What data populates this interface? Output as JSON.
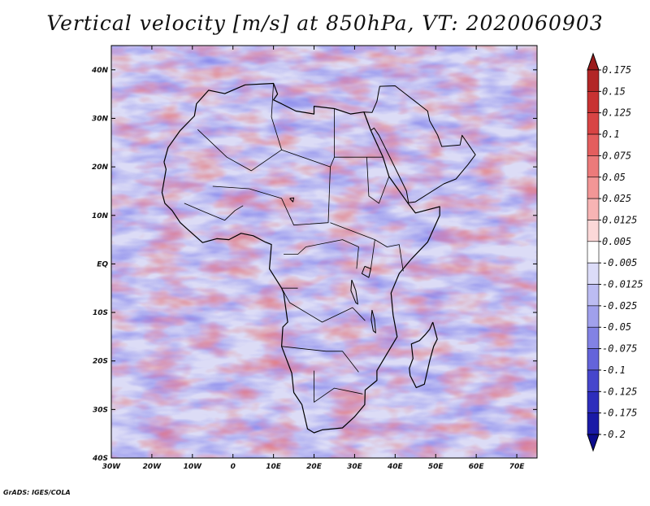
{
  "header": {
    "title": "Vertical velocity [m/s] at 850hPa, VT: 2020060903"
  },
  "map": {
    "lon_range": [
      -30,
      75
    ],
    "lat_range": [
      -40,
      45
    ],
    "x_ticks": [
      {
        "value": -30,
        "label": "30W"
      },
      {
        "value": -20,
        "label": "20W"
      },
      {
        "value": -10,
        "label": "10W"
      },
      {
        "value": 0,
        "label": "0"
      },
      {
        "value": 10,
        "label": "10E"
      },
      {
        "value": 20,
        "label": "20E"
      },
      {
        "value": 30,
        "label": "30E"
      },
      {
        "value": 40,
        "label": "40E"
      },
      {
        "value": 50,
        "label": "50E"
      },
      {
        "value": 60,
        "label": "60E"
      },
      {
        "value": 70,
        "label": "70E"
      }
    ],
    "y_ticks": [
      {
        "value": 40,
        "label": "40N"
      },
      {
        "value": 30,
        "label": "30N"
      },
      {
        "value": 20,
        "label": "20N"
      },
      {
        "value": 10,
        "label": "10N"
      },
      {
        "value": 0,
        "label": "EQ"
      },
      {
        "value": -10,
        "label": "10S"
      },
      {
        "value": -20,
        "label": "20S"
      },
      {
        "value": -30,
        "label": "30S"
      },
      {
        "value": -40,
        "label": "40S"
      }
    ],
    "coastline": [
      [
        -17,
        21
      ],
      [
        -16,
        24
      ],
      [
        -13,
        27.5
      ],
      [
        -9.5,
        30.5
      ],
      [
        -9,
        33
      ],
      [
        -6,
        35.8
      ],
      [
        -2,
        35.1
      ],
      [
        3,
        36.9
      ],
      [
        10,
        37.2
      ],
      [
        11,
        35
      ],
      [
        10,
        33.8
      ],
      [
        12,
        33
      ],
      [
        15.5,
        31.5
      ],
      [
        20,
        30.9
      ],
      [
        20,
        32.5
      ],
      [
        25,
        32
      ],
      [
        29,
        30.9
      ],
      [
        32.3,
        31.3
      ],
      [
        34,
        27.5
      ],
      [
        37,
        22
      ],
      [
        38.5,
        18
      ],
      [
        43,
        12.7
      ],
      [
        45,
        10.5
      ],
      [
        51,
        11.8
      ],
      [
        51,
        10
      ],
      [
        48,
        4.5
      ],
      [
        44,
        1
      ],
      [
        41,
        -2
      ],
      [
        39,
        -6
      ],
      [
        39.5,
        -10.5
      ],
      [
        40.5,
        -15
      ],
      [
        35.5,
        -22
      ],
      [
        35.5,
        -24
      ],
      [
        32.6,
        -26
      ],
      [
        32.5,
        -29
      ],
      [
        30,
        -31.5
      ],
      [
        27,
        -33.8
      ],
      [
        22,
        -34.2
      ],
      [
        20,
        -34.8
      ],
      [
        18.4,
        -34
      ],
      [
        17,
        -29
      ],
      [
        15,
        -26.5
      ],
      [
        14.5,
        -22.5
      ],
      [
        12,
        -17
      ],
      [
        12.3,
        -13
      ],
      [
        13.5,
        -12
      ],
      [
        12.5,
        -6
      ],
      [
        12,
        -5
      ],
      [
        9,
        -1
      ],
      [
        9.5,
        4
      ],
      [
        8,
        4.5
      ],
      [
        5,
        5.8
      ],
      [
        2,
        6.3
      ],
      [
        -1,
        5
      ],
      [
        -4,
        5.2
      ],
      [
        -7.5,
        4.4
      ],
      [
        -11,
        7
      ],
      [
        -13,
        8.5
      ],
      [
        -15,
        11
      ],
      [
        -16.8,
        12.5
      ],
      [
        -17.5,
        14.7
      ],
      [
        -16.5,
        19.5
      ],
      [
        -17,
        21
      ]
    ],
    "madagascar": [
      [
        49.3,
        -12
      ],
      [
        50.4,
        -15.5
      ],
      [
        49.5,
        -17
      ],
      [
        48.5,
        -20
      ],
      [
        47.2,
        -24.8
      ],
      [
        45.2,
        -25.5
      ],
      [
        43.7,
        -23
      ],
      [
        43.5,
        -21.5
      ],
      [
        44.4,
        -19.5
      ],
      [
        44,
        -16.5
      ],
      [
        46,
        -15.8
      ],
      [
        47.5,
        -14.5
      ],
      [
        48.5,
        -13.5
      ],
      [
        49.3,
        -12
      ]
    ],
    "sinai_arabia": [
      [
        32.3,
        31.3
      ],
      [
        34.3,
        31.2
      ],
      [
        35.5,
        33.5
      ],
      [
        36,
        35.8
      ],
      [
        36.2,
        36.6
      ],
      [
        40,
        36.7
      ],
      [
        48,
        31.5
      ],
      [
        48.5,
        29.5
      ],
      [
        50.5,
        26.5
      ],
      [
        51.5,
        24.2
      ],
      [
        56,
        24.5
      ],
      [
        56.5,
        26.5
      ],
      [
        59.8,
        22.5
      ],
      [
        58,
        20.5
      ],
      [
        55,
        17.5
      ],
      [
        52,
        16.5
      ],
      [
        45,
        12.8
      ],
      [
        43.3,
        12.6
      ],
      [
        42.8,
        15
      ],
      [
        39,
        21.5
      ],
      [
        36,
        26.5
      ],
      [
        34.8,
        28
      ],
      [
        34,
        27.5
      ],
      [
        32.3,
        31.3
      ]
    ],
    "borders": [
      [
        [
          -8.7,
          27.7
        ],
        [
          -1.5,
          22
        ],
        [
          4.5,
          19.2
        ],
        [
          12,
          23.5
        ]
      ],
      [
        [
          -5,
          16
        ],
        [
          4,
          15.5
        ],
        [
          12,
          13.5
        ],
        [
          15,
          8
        ],
        [
          23.5,
          8.5
        ],
        [
          24,
          20
        ]
      ],
      [
        [
          10,
          37.2
        ],
        [
          9.5,
          30.3
        ],
        [
          12,
          23.5
        ],
        [
          24,
          20
        ],
        [
          25,
          22
        ],
        [
          25,
          32
        ]
      ],
      [
        [
          25,
          22
        ],
        [
          37,
          22
        ]
      ],
      [
        [
          24,
          8.5
        ],
        [
          35,
          5
        ],
        [
          34,
          -1
        ]
      ],
      [
        [
          16,
          -5
        ],
        [
          12,
          -5
        ],
        [
          14,
          -8
        ],
        [
          22,
          -12
        ],
        [
          29.5,
          -9
        ],
        [
          32.6,
          -11.7
        ]
      ],
      [
        [
          12,
          -17
        ],
        [
          23,
          -18
        ],
        [
          27,
          -18
        ],
        [
          31,
          -22.3
        ]
      ],
      [
        [
          20,
          -22
        ],
        [
          20,
          -28.5
        ],
        [
          25,
          -25.6
        ],
        [
          32,
          -26.8
        ]
      ],
      [
        [
          35,
          5
        ],
        [
          38,
          3.5
        ],
        [
          41,
          4
        ],
        [
          42,
          -1.5
        ]
      ],
      [
        [
          12.5,
          2
        ],
        [
          16,
          2
        ],
        [
          18,
          3.5
        ],
        [
          27,
          5
        ],
        [
          31,
          3.5
        ],
        [
          30.5,
          -1
        ]
      ],
      [
        [
          -12,
          12.5
        ],
        [
          -5,
          10
        ],
        [
          -2,
          9
        ],
        [
          0.5,
          11
        ],
        [
          2.5,
          12
        ]
      ],
      [
        [
          33,
          22
        ],
        [
          33.5,
          14
        ],
        [
          36,
          12.5
        ],
        [
          38.5,
          18
        ]
      ]
    ],
    "lakes": [
      [
        [
          32.5,
          -0.5
        ],
        [
          34,
          -1
        ],
        [
          33.5,
          -2.8
        ],
        [
          31.8,
          -2
        ],
        [
          32.5,
          -0.5
        ]
      ],
      [
        [
          29.3,
          -3.3
        ],
        [
          30.3,
          -5.5
        ],
        [
          30.8,
          -8.3
        ],
        [
          30.3,
          -8
        ],
        [
          29.1,
          -5.5
        ],
        [
          29.3,
          -3.3
        ]
      ],
      [
        [
          34.3,
          -9.5
        ],
        [
          34.9,
          -11.5
        ],
        [
          35.2,
          -14.2
        ],
        [
          34.6,
          -13.8
        ],
        [
          34.1,
          -11.5
        ],
        [
          34.3,
          -9.5
        ]
      ],
      [
        [
          14,
          13.5
        ],
        [
          15,
          13.6
        ],
        [
          14.8,
          12.8
        ],
        [
          14,
          13.5
        ]
      ]
    ]
  },
  "colorbar": {
    "labels": [
      "0.175",
      "0.15",
      "0.125",
      "0.1",
      "0.075",
      "0.05",
      "0.025",
      "0.0125",
      "0.005",
      "-0.005",
      "-0.0125",
      "-0.025",
      "-0.05",
      "-0.075",
      "-0.1",
      "-0.125",
      "-0.175",
      "-0.2"
    ],
    "colors": [
      "#9b1c1c",
      "#b22626",
      "#c83232",
      "#d84444",
      "#e45e5e",
      "#ec7a7a",
      "#f29696",
      "#f7b4b4",
      "#fbd8d8",
      "#ffffff",
      "#dcdcf8",
      "#bcbcf2",
      "#a0a0ec",
      "#8282e4",
      "#6464da",
      "#4646cc",
      "#2e2ebc",
      "#1a1aa6",
      "#0c0c8c"
    ]
  },
  "footer": {
    "credit": "GrADS: IGES/COLA"
  }
}
